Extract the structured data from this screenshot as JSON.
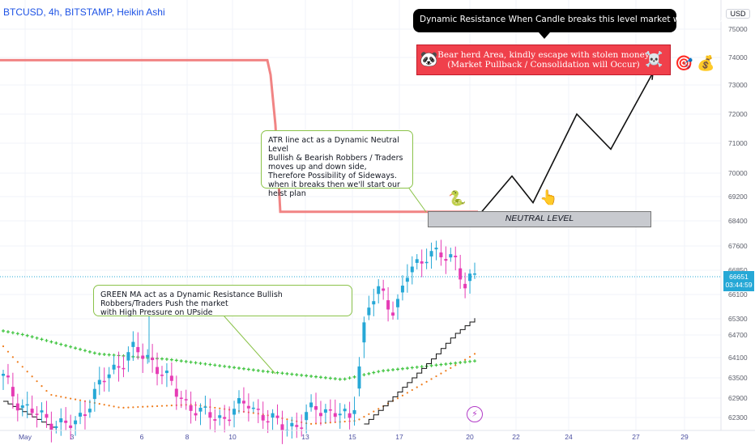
{
  "header": {
    "symbol_line": "BTCUSD, 4h, BITSTAMP, Heikin Ashi",
    "currency": "USD"
  },
  "colors": {
    "bull": "#26a8d6",
    "bear": "#e63cb5",
    "atr_line": "#ef6f6f",
    "green_ma": "#3fc43f",
    "orange_ma": "#ef7b1a",
    "stair": "#111111",
    "projection": "#111111",
    "last_price_line": "#26a8d6",
    "grid": "#f0f3fa",
    "axis_text": "#5d606b",
    "date_text": "#4a4ea0"
  },
  "chart_data": {
    "type": "candlestick",
    "style": "Heikin Ashi",
    "timeframe": "4h",
    "ylim": [
      62000,
      75600
    ],
    "y_ticks": [
      "75000",
      "74000",
      "73000",
      "72000",
      "71000",
      "70000",
      "69200",
      "68400",
      "67600",
      "66850",
      "66100",
      "65300",
      "64700",
      "64100",
      "63500",
      "62900",
      "62300"
    ],
    "x_ticks": [
      "May",
      "3",
      "6",
      "8",
      "10",
      "13",
      "15",
      "17",
      "20",
      "22",
      "24",
      "27",
      "29"
    ],
    "last_price": "66651",
    "countdown": "03:44:59",
    "atr_line": {
      "high": 73900,
      "low": 68700
    },
    "neutral_level": [
      68350,
      68900
    ],
    "bear_area": [
      73450,
      74600
    ],
    "projection_path": [
      [
        68680
      ],
      [
        69900
      ],
      [
        69000
      ],
      [
        72000
      ],
      [
        70800
      ],
      [
        73450
      ]
    ],
    "series": [
      {
        "name": "Heikin Ashi candles",
        "description": "bull (blue) and bear (pink) bodies"
      },
      {
        "name": "GREEN MA",
        "start": 64850,
        "trough": 63400,
        "end": 64000
      },
      {
        "name": "orange MA",
        "start": 64400,
        "trough": 62400,
        "end": 64200
      },
      {
        "name": "ATR stair",
        "start": 62200,
        "end": 65300
      }
    ]
  },
  "annotations": {
    "resistance_callout": "Dynamic Resistance When Candle breaks this level market will Continue to go UP",
    "bear_area_line1": "Bear herd Area, kindly escape with stolen money",
    "bear_area_line2": "(Market Pullback / Consolidation will Occur)",
    "atr_note": "ATR line act as a Dynamic Neutral Level\nBullish & Bearish Robbers / Traders\nmoves up and down side,\nTherefore Possibility of Sideways.\nwhen it breaks then we'll start our heist plan",
    "ma_note": "GREEN MA act as a Dynamic Resistance Bullish Robbers/Traders Push the market\nwith High Pressure on UPside",
    "neutral_label": "NEUTRAL LEVEL"
  },
  "icons": [
    "panda-icon",
    "skull-crossbones-icon",
    "target-icon",
    "money-bag-icon",
    "snake-icon",
    "pointing-hand-icon",
    "lightning-icon"
  ]
}
